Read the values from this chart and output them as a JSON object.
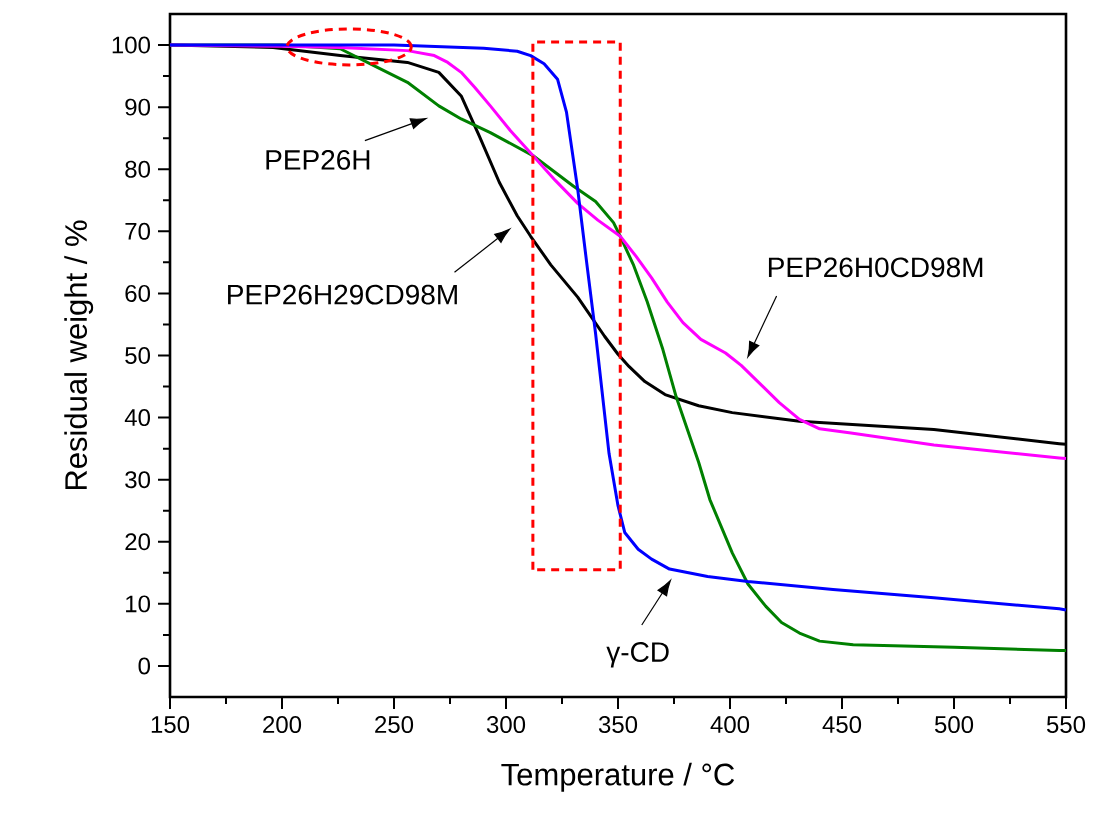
{
  "chart_data": {
    "type": "line",
    "xlabel": "Temperature / °C",
    "ylabel": "Residual weight / %",
    "xlim": [
      150,
      550
    ],
    "ylim": [
      -5,
      105
    ],
    "xticks": [
      150,
      200,
      250,
      300,
      350,
      400,
      450,
      500,
      550
    ],
    "yticks": [
      0,
      10,
      20,
      30,
      40,
      50,
      60,
      70,
      80,
      90,
      100
    ],
    "grid": false,
    "legend": false,
    "marker": "none",
    "line_style": "solid",
    "annotations": [
      "PEP26H29CD98M",
      "PEP26H",
      "PEP26H0CD98M",
      "γ-CD"
    ],
    "series": [
      {
        "color": "#000000",
        "x": [
          150,
          196,
          226,
          256,
          270,
          280,
          288,
          297,
          305,
          311,
          320,
          332,
          344,
          350,
          355,
          362,
          371,
          386,
          401,
          431,
          491,
          547,
          550
        ],
        "values": [
          100,
          99.6,
          98.3,
          97.2,
          95.6,
          91.8,
          85.4,
          77.9,
          72.5,
          69.2,
          64.6,
          59.4,
          53.1,
          50.2,
          48.2,
          45.8,
          43.7,
          41.9,
          40.8,
          39.4,
          38.1,
          35.8,
          35.7
        ]
      },
      {
        "color": "#008000",
        "x": [
          150,
          200,
          226,
          241,
          256,
          270,
          280,
          293,
          312,
          330,
          340,
          348,
          351,
          357,
          363,
          370,
          376,
          386,
          391,
          401,
          408,
          416,
          423,
          431,
          440,
          455,
          500,
          547,
          550
        ],
        "values": [
          100,
          100,
          99.4,
          96.7,
          94.0,
          90.2,
          88.1,
          85.9,
          82.2,
          77.3,
          74.8,
          71.4,
          69.2,
          64.5,
          58.7,
          51.0,
          43.3,
          32.8,
          26.8,
          18.2,
          13.2,
          9.6,
          7.0,
          5.3,
          4.0,
          3.4,
          3.0,
          2.5,
          2.5
        ]
      },
      {
        "color": "#ff00ff",
        "x": [
          150,
          200,
          226,
          256,
          268,
          274,
          280,
          286,
          293,
          302,
          312,
          322,
          332,
          341,
          351,
          358,
          365,
          372,
          379,
          387,
          398,
          405,
          413,
          422,
          431,
          440,
          454,
          491,
          547,
          550
        ],
        "values": [
          100,
          99.8,
          99.6,
          99.1,
          98.3,
          97.2,
          95.6,
          93.2,
          90.2,
          86.2,
          82.2,
          78.2,
          74.5,
          71.8,
          69.2,
          66.0,
          62.5,
          58.6,
          55.3,
          52.6,
          50.4,
          48.4,
          45.6,
          42.4,
          39.7,
          38.2,
          37.5,
          35.6,
          33.5,
          33.4
        ]
      },
      {
        "color": "#0000ff",
        "x": [
          150,
          200,
          250,
          290,
          305,
          311,
          317,
          323,
          327,
          332,
          336,
          340,
          346,
          350,
          353,
          359,
          365,
          373,
          390,
          408,
          446,
          491,
          547,
          550
        ],
        "values": [
          100,
          100,
          100,
          99.5,
          99.0,
          98.3,
          97.0,
          94.5,
          89.2,
          76.8,
          65.0,
          53.5,
          34.2,
          25.8,
          21.5,
          18.8,
          17.2,
          15.6,
          14.4,
          13.6,
          12.3,
          11.0,
          9.2,
          9.0
        ]
      }
    ]
  }
}
